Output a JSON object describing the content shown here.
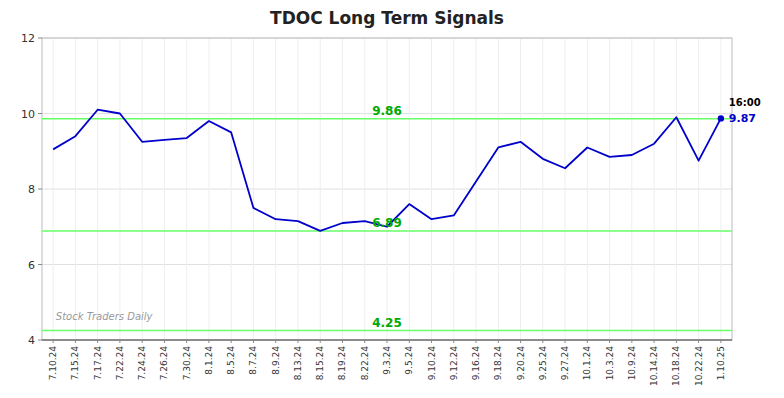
{
  "chart_data": {
    "type": "line",
    "title": "TDOC Long Term Signals",
    "categories": [
      "7.10.24",
      "7.15.24",
      "7.17.24",
      "7.22.24",
      "7.24.24",
      "7.26.24",
      "7.30.24",
      "8.1.24",
      "8.5.24",
      "8.7.24",
      "8.9.24",
      "8.13.24",
      "8.15.24",
      "8.19.24",
      "8.22.24",
      "9.3.24",
      "9.5.24",
      "9.10.24",
      "9.12.24",
      "9.16.24",
      "9.18.24",
      "9.20.24",
      "9.25.24",
      "9.27.24",
      "10.1.24",
      "10.3.24",
      "10.9.24",
      "10.14.24",
      "10.18.24",
      "10.22.24",
      "1.10.25"
    ],
    "values": [
      9.05,
      9.4,
      10.1,
      10.0,
      9.25,
      9.3,
      9.35,
      9.8,
      9.5,
      7.5,
      7.2,
      7.15,
      6.89,
      7.1,
      7.15,
      7.0,
      7.6,
      7.2,
      7.3,
      8.2,
      9.1,
      9.25,
      8.8,
      8.55,
      9.1,
      8.85,
      8.9,
      9.2,
      9.9,
      8.75,
      9.87
    ],
    "color": "#0000cc",
    "reference_lines": {
      "values": [
        9.86,
        6.89,
        4.25
      ],
      "labels": [
        "9.86",
        "6.89",
        "4.25"
      ],
      "color": "#66ff66",
      "label_color": "#00aa00"
    },
    "last_label": "16:00",
    "last_value_label": "9.87",
    "watermark": "Stock Traders Daily",
    "ylim": [
      4.0,
      12.0
    ],
    "yticks": [
      4,
      6,
      8,
      10,
      12
    ],
    "grid": true
  }
}
